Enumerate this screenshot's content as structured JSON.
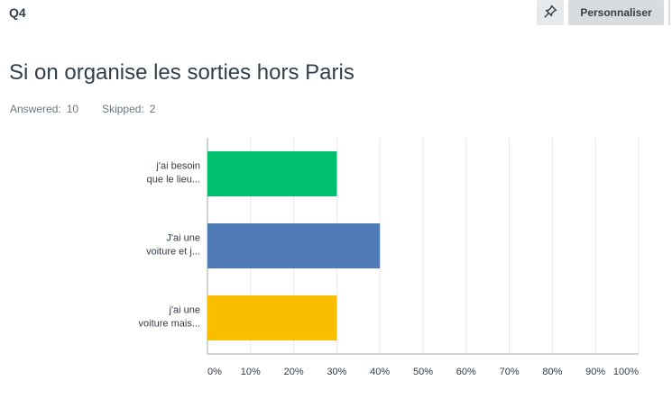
{
  "question": {
    "number": "Q4",
    "title": "Si on organise les sorties hors Paris"
  },
  "toolbar": {
    "pin_icon": "pin-icon",
    "customize_label": "Personnaliser"
  },
  "stats": {
    "answered_label": "Answered:",
    "answered_value": "10",
    "skipped_label": "Skipped:",
    "skipped_value": "2"
  },
  "colors": {
    "bar_1": "#00bf6f",
    "bar_2": "#507cb6",
    "bar_3": "#f9be00",
    "grid": "#e6e8ea",
    "axis": "#a0a8ae"
  },
  "chart_data": {
    "type": "bar",
    "orientation": "horizontal",
    "categories": [
      [
        "j'ai besoin",
        "que le lieu..."
      ],
      [
        "J'ai une",
        "voiture et j..."
      ],
      [
        "j'ai une",
        "voiture mais..."
      ]
    ],
    "values": [
      30,
      40,
      30
    ],
    "xlim": [
      0,
      100
    ],
    "xticks": [
      "0%",
      "10%",
      "20%",
      "30%",
      "40%",
      "50%",
      "60%",
      "70%",
      "80%",
      "90%",
      "100%"
    ],
    "grid": true,
    "legend": "none"
  }
}
